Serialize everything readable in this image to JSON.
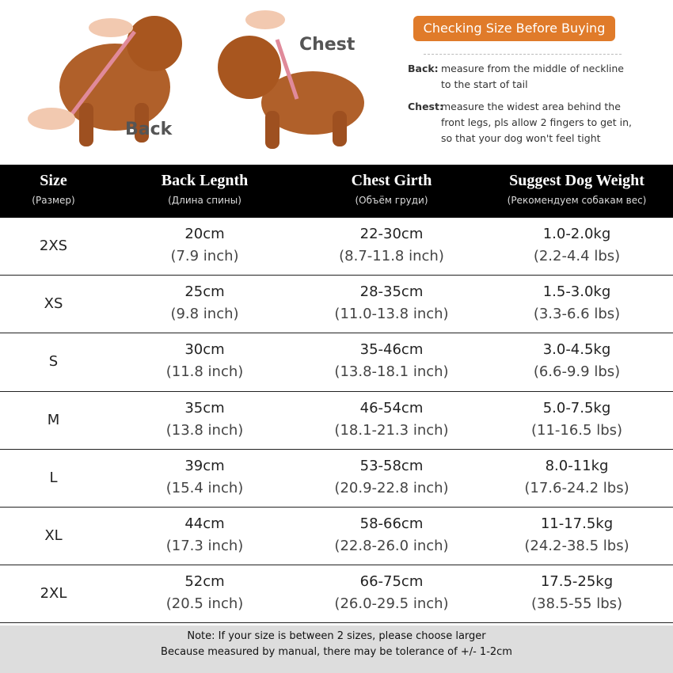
{
  "photos": {
    "back_label": "Back",
    "chest_label": "Chest"
  },
  "guide": {
    "title": "Checking Size Before Buying",
    "items": [
      {
        "term": "Back:",
        "lines": [
          "measure from the middle of neckline",
          "to the start of tail"
        ]
      },
      {
        "term": "Chest:",
        "lines": [
          "measure the widest area behind the",
          "front legs, pls allow 2 fingers to get in,",
          "so that your dog won't feel tight"
        ]
      }
    ]
  },
  "table": {
    "headers": [
      {
        "title": "Size",
        "subtitle": "(Размер)"
      },
      {
        "title": "Back Legnth",
        "subtitle": "(Длина спины)"
      },
      {
        "title": "Chest Girth",
        "subtitle": "(Объём груди)"
      },
      {
        "title": "Suggest Dog Weight",
        "subtitle": "(Рекомендуем собакам вес)"
      }
    ],
    "rows": [
      [
        "2XS",
        [
          "20cm",
          "(7.9 inch)"
        ],
        [
          "22-30cm",
          "(8.7-11.8 inch)"
        ],
        [
          "1.0-2.0kg",
          "(2.2-4.4 lbs)"
        ]
      ],
      [
        "XS",
        [
          "25cm",
          "(9.8 inch)"
        ],
        [
          "28-35cm",
          "(11.0-13.8 inch)"
        ],
        [
          "1.5-3.0kg",
          "(3.3-6.6 lbs)"
        ]
      ],
      [
        "S",
        [
          "30cm",
          "(11.8 inch)"
        ],
        [
          "35-46cm",
          "(13.8-18.1 inch)"
        ],
        [
          "3.0-4.5kg",
          "(6.6-9.9 lbs)"
        ]
      ],
      [
        "M",
        [
          "35cm",
          "(13.8 inch)"
        ],
        [
          "46-54cm",
          "(18.1-21.3 inch)"
        ],
        [
          "5.0-7.5kg",
          "(11-16.5 lbs)"
        ]
      ],
      [
        "L",
        [
          "39cm",
          "(15.4 inch)"
        ],
        [
          "53-58cm",
          "(20.9-22.8 inch)"
        ],
        [
          "8.0-11kg",
          "(17.6-24.2 lbs)"
        ]
      ],
      [
        "XL",
        [
          "44cm",
          "(17.3 inch)"
        ],
        [
          "58-66cm",
          "(22.8-26.0 inch)"
        ],
        [
          "11-17.5kg",
          "(24.2-38.5 lbs)"
        ]
      ],
      [
        "2XL",
        [
          "52cm",
          "(20.5 inch)"
        ],
        [
          "66-75cm",
          "(26.0-29.5 inch)"
        ],
        [
          "17.5-25kg",
          "(38.5-55 lbs)"
        ]
      ]
    ]
  },
  "footer": {
    "lines": [
      "Note: If your size is between 2 sizes, please choose larger",
      "Because measured by manual, there may be tolerance of +/- 1-2cm"
    ]
  }
}
